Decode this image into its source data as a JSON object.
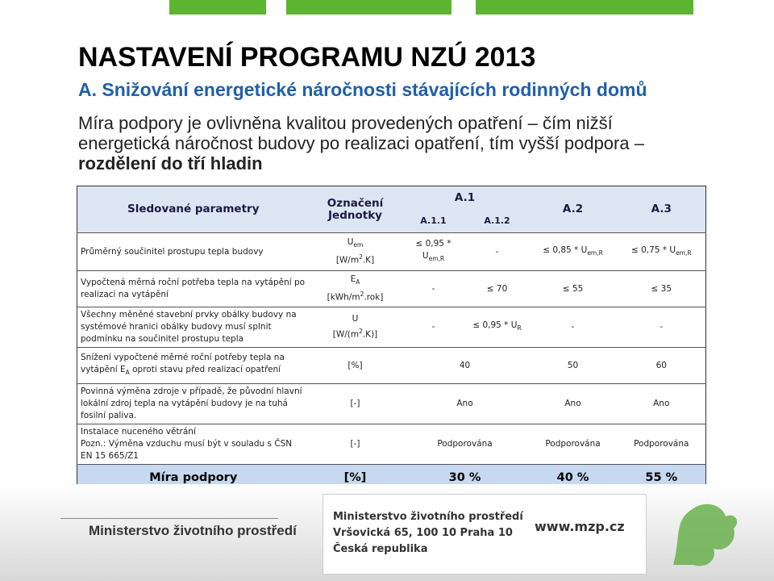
{
  "header": {
    "title": "NASTAVENÍ PROGRAMU NZÚ 2013",
    "subtitle": "A. Snižování energetické náročnosti stávajících rodinných domů",
    "lines": [
      "Míra podpory je ovlivněna kvalitou provedených opatření – čím nižší",
      "energetická náročnost budovy po realizaci opatření, tím vyšší podpora –"
    ],
    "bold": "rozdělení do tří hladin"
  },
  "table": {
    "head": {
      "parameters": "Sledované parametry",
      "unit_1": "Označení",
      "unit_2": "Jednotky",
      "a1": "A.1",
      "a11": "A.1.1",
      "a12": "A.1.2",
      "a2": "A.2",
      "a3": "A.3"
    },
    "rows": [
      {
        "parameter": "Průměrný součinitel prostupu tepla budovy",
        "symbol": "U",
        "symbol_sub": "em",
        "unit": [
          "[W/m",
          "2",
          ".K]"
        ],
        "a11": [
          "≤ 0,95 * U",
          "em,R"
        ],
        "a12": "-",
        "a2": [
          "≤ 0,85 * U",
          "em,R"
        ],
        "a3": [
          "≤ 0,75 * U",
          "em,R"
        ]
      },
      {
        "parameter": "Vypočtená měrná roční potřeba tepla na vytápění po realizaci na vytápění",
        "symbol": "E",
        "symbol_sub": "A",
        "unit": [
          "[kWh/m",
          "2",
          ".rok]"
        ],
        "a11": "-",
        "a12": "≤ 70",
        "a2": "≤ 55",
        "a3": "≤ 35"
      },
      {
        "parameter": "Všechny měněné stavební prvky obálky budovy na systémové hranici obálky budovy musí splnit podmínku na součinitel prostupu tepla",
        "symbol": "U",
        "unit": [
          "[W/(m",
          "2",
          ".K)]"
        ],
        "a11": "-",
        "a12": [
          "≤ 0,95 * U",
          "R"
        ],
        "a2": "-",
        "a3": "-"
      },
      {
        "parameter": [
          "Snížení vypočtené měrné roční potřeby tepla na vytápění E",
          "A",
          " oproti stavu před realizací opatření"
        ],
        "unit": "[%]",
        "a1": "40",
        "a2": "50",
        "a3": "60"
      },
      {
        "parameter": "Povinná výměna zdroje v případě, že původní hlavní lokální zdroj tepla na vytápění budovy je na tuhá fosilní paliva.",
        "unit": "[-]",
        "a1": "Ano",
        "a2": "Ano",
        "a3": "Ano"
      },
      {
        "parameter": [
          "Instalace nuceného větrání",
          "Pozn.: Výměna vzduchu musí být v souladu s ČSN EN 15 665/Z1"
        ],
        "unit": "[-]",
        "a1": "Podporována",
        "a2": "Podporována",
        "a3": "Podporována"
      }
    ],
    "total": {
      "label": "Míra podpory",
      "unit": "[%]",
      "a1": "30 %",
      "a2": "40 %",
      "a3": "55 %"
    }
  },
  "footer": {
    "logo": "Ministerstvo životního prostředí",
    "org": "Ministerstvo životního prostředí",
    "address": "Vršovická 65, 100 10 Praha 10",
    "country": "Česká republika",
    "web": "www.mzp.cz"
  }
}
